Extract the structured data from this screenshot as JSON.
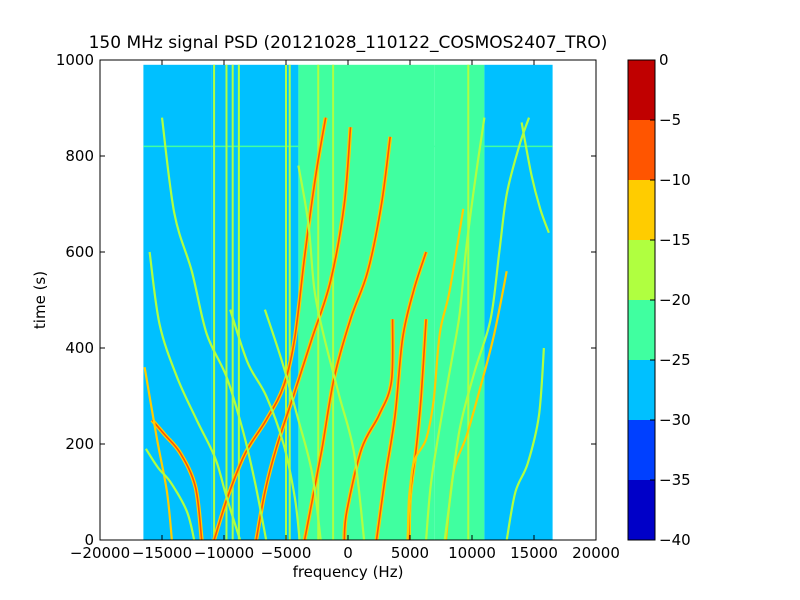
{
  "chart_data": {
    "type": "heatmap",
    "title": "150 MHz signal PSD (20121028_110122_COSMOS2407_TRO)",
    "xlabel": "frequency (Hz)",
    "ylabel": "time (s)",
    "xlim": [
      -20000,
      20000
    ],
    "ylim": [
      0,
      1000
    ],
    "data_extent": {
      "x": [
        -16500,
        16500
      ],
      "y": [
        0,
        990
      ]
    },
    "xticks": [
      -20000,
      -15000,
      -10000,
      -5000,
      0,
      5000,
      10000,
      15000,
      20000
    ],
    "xtick_labels": [
      "−20000",
      "−15000",
      "−10000",
      "−5000",
      "0",
      "5000",
      "10000",
      "15000",
      "20000"
    ],
    "yticks": [
      0,
      200,
      400,
      600,
      800,
      1000
    ],
    "ytick_labels": [
      "0",
      "200",
      "400",
      "600",
      "800",
      "1000"
    ],
    "colorbar": {
      "levels": [
        -40,
        -35,
        -30,
        -25,
        -20,
        -15,
        -10,
        -5,
        0
      ],
      "tick_labels": [
        "−40",
        "−35",
        "−30",
        "−25",
        "−20",
        "−15",
        "−10",
        "−5",
        "0"
      ],
      "colors": [
        "#0000c8",
        "#0040ff",
        "#00c0ff",
        "#40ffa0",
        "#b0ff40",
        "#ffcc00",
        "#ff5500",
        "#c00000"
      ]
    },
    "background_regions": [
      {
        "x": [
          -16500,
          -11000
        ],
        "y": [
          0,
          990
        ],
        "level": -27.5
      },
      {
        "x": [
          -11000,
          -4000
        ],
        "y": [
          0,
          990
        ],
        "level": -27.5
      },
      {
        "x": [
          -4000,
          7000
        ],
        "y": [
          0,
          990
        ],
        "level": -22.5
      },
      {
        "x": [
          7000,
          11000
        ],
        "y": [
          0,
          990
        ],
        "level": -22.5
      },
      {
        "x": [
          11000,
          16500
        ],
        "y": [
          0,
          990
        ],
        "level": -27.5
      }
    ],
    "vertical_lines": [
      {
        "x": -10800,
        "level": -17.5
      },
      {
        "x": -9800,
        "level": -17.5
      },
      {
        "x": -9300,
        "level": -17.5
      },
      {
        "x": -8800,
        "level": -17.5
      },
      {
        "x": -5000,
        "level": -17.5
      },
      {
        "x": -4700,
        "level": -17.5
      },
      {
        "x": -2400,
        "level": -17.5
      },
      {
        "x": -1200,
        "level": -17.5
      },
      {
        "x": 9700,
        "level": -17.5
      }
    ],
    "horizontal_lines": [
      {
        "y": 820,
        "level": -22.5
      }
    ],
    "traces": [
      {
        "name": "",
        "level": -7.5,
        "points": [
          [
            -1800,
            880
          ],
          [
            -2600,
            760
          ],
          [
            -3500,
            590
          ],
          [
            -4300,
            420
          ],
          [
            -5200,
            320
          ],
          [
            -6600,
            250
          ],
          [
            -8300,
            180
          ],
          [
            -9700,
            90
          ],
          [
            -10800,
            0
          ]
        ]
      },
      {
        "name": "",
        "level": -7.5,
        "points": [
          [
            200,
            860
          ],
          [
            -300,
            700
          ],
          [
            -1400,
            540
          ],
          [
            -2900,
            420
          ],
          [
            -4400,
            300
          ],
          [
            -5800,
            190
          ],
          [
            -6700,
            100
          ],
          [
            -7400,
            0
          ]
        ]
      },
      {
        "name": "",
        "level": -7.5,
        "points": [
          [
            3400,
            840
          ],
          [
            2700,
            700
          ],
          [
            1600,
            560
          ],
          [
            200,
            460
          ],
          [
            -1100,
            340
          ],
          [
            -2100,
            190
          ],
          [
            -2900,
            80
          ],
          [
            -3500,
            0
          ]
        ]
      },
      {
        "name": "",
        "level": -7.5,
        "points": [
          [
            3600,
            460
          ],
          [
            3500,
            330
          ],
          [
            2500,
            260
          ],
          [
            1100,
            190
          ],
          [
            -100,
            60
          ],
          [
            -300,
            0
          ]
        ]
      },
      {
        "name": "",
        "level": -7.5,
        "points": [
          [
            6300,
            600
          ],
          [
            5300,
            520
          ],
          [
            4400,
            420
          ],
          [
            3800,
            260
          ],
          [
            3000,
            130
          ],
          [
            2300,
            0
          ]
        ]
      },
      {
        "name": "",
        "level": -7.5,
        "points": [
          [
            6300,
            460
          ],
          [
            5900,
            300
          ],
          [
            5500,
            190
          ],
          [
            5000,
            90
          ],
          [
            4900,
            0
          ]
        ]
      },
      {
        "name": "",
        "level": -12.5,
        "points": [
          [
            9300,
            690
          ],
          [
            8200,
            520
          ],
          [
            7400,
            430
          ],
          [
            6900,
            290
          ],
          [
            6300,
            210
          ],
          [
            5200,
            150
          ],
          [
            4800,
            0
          ]
        ]
      },
      {
        "name": "",
        "level": -12.5,
        "points": [
          [
            12800,
            560
          ],
          [
            11800,
            430
          ],
          [
            10800,
            330
          ],
          [
            9600,
            220
          ],
          [
            8500,
            140
          ],
          [
            7900,
            0
          ]
        ]
      },
      {
        "name": "",
        "level": -17.5,
        "points": [
          [
            15800,
            400
          ],
          [
            15400,
            260
          ],
          [
            14500,
            160
          ],
          [
            13500,
            100
          ],
          [
            12800,
            0
          ]
        ]
      },
      {
        "name": "",
        "level": -17.5,
        "points": [
          [
            16200,
            640
          ],
          [
            15500,
            690
          ],
          [
            14800,
            760
          ],
          [
            14000,
            870
          ]
        ]
      },
      {
        "name": "",
        "level": -17.5,
        "points": [
          [
            -15000,
            880
          ],
          [
            -14000,
            680
          ],
          [
            -12600,
            560
          ],
          [
            -11400,
            430
          ],
          [
            -9800,
            340
          ],
          [
            -8500,
            230
          ],
          [
            -7500,
            120
          ],
          [
            -6600,
            0
          ]
        ]
      },
      {
        "name": "",
        "level": -17.5,
        "points": [
          [
            -16000,
            600
          ],
          [
            -15200,
            450
          ],
          [
            -13800,
            340
          ],
          [
            -12200,
            250
          ],
          [
            -10700,
            170
          ],
          [
            -9800,
            90
          ],
          [
            -8700,
            0
          ]
        ]
      },
      {
        "name": "",
        "level": -7.5,
        "points": [
          [
            -15800,
            250
          ],
          [
            -14800,
            220
          ],
          [
            -13500,
            180
          ],
          [
            -12300,
            110
          ],
          [
            -11800,
            0
          ]
        ]
      },
      {
        "name": "",
        "level": -12.5,
        "points": [
          [
            -16400,
            360
          ],
          [
            -15400,
            210
          ],
          [
            -14600,
            100
          ],
          [
            -14200,
            0
          ]
        ]
      },
      {
        "name": "",
        "level": -17.5,
        "points": [
          [
            -16300,
            190
          ],
          [
            -15300,
            150
          ],
          [
            -14300,
            120
          ],
          [
            -13000,
            60
          ],
          [
            -12400,
            0
          ]
        ]
      },
      {
        "name": "",
        "level": -17.5,
        "points": [
          [
            -6700,
            480
          ],
          [
            -5300,
            370
          ],
          [
            -4000,
            250
          ],
          [
            -2900,
            140
          ],
          [
            -2200,
            0
          ]
        ]
      },
      {
        "name": "",
        "level": -17.5,
        "points": [
          [
            -4000,
            780
          ],
          [
            -3200,
            660
          ],
          [
            -2700,
            520
          ],
          [
            -1900,
            420
          ],
          [
            -700,
            300
          ],
          [
            500,
            180
          ],
          [
            1300,
            0
          ]
        ]
      },
      {
        "name": "",
        "level": -17.5,
        "points": [
          [
            -9500,
            480
          ],
          [
            -8100,
            370
          ],
          [
            -6600,
            300
          ],
          [
            -5200,
            200
          ],
          [
            -4300,
            90
          ],
          [
            -3900,
            0
          ]
        ]
      },
      {
        "name": "",
        "level": -17.5,
        "points": [
          [
            14600,
            880
          ],
          [
            13800,
            820
          ],
          [
            12800,
            720
          ],
          [
            12200,
            600
          ],
          [
            11500,
            460
          ],
          [
            10200,
            350
          ],
          [
            9000,
            230
          ],
          [
            8200,
            80
          ],
          [
            7800,
            0
          ]
        ]
      },
      {
        "name": "",
        "level": -17.5,
        "points": [
          [
            11000,
            880
          ],
          [
            10200,
            740
          ],
          [
            9500,
            600
          ],
          [
            9000,
            470
          ],
          [
            8400,
            380
          ],
          [
            7500,
            250
          ],
          [
            6700,
            120
          ],
          [
            6300,
            0
          ]
        ]
      }
    ]
  }
}
